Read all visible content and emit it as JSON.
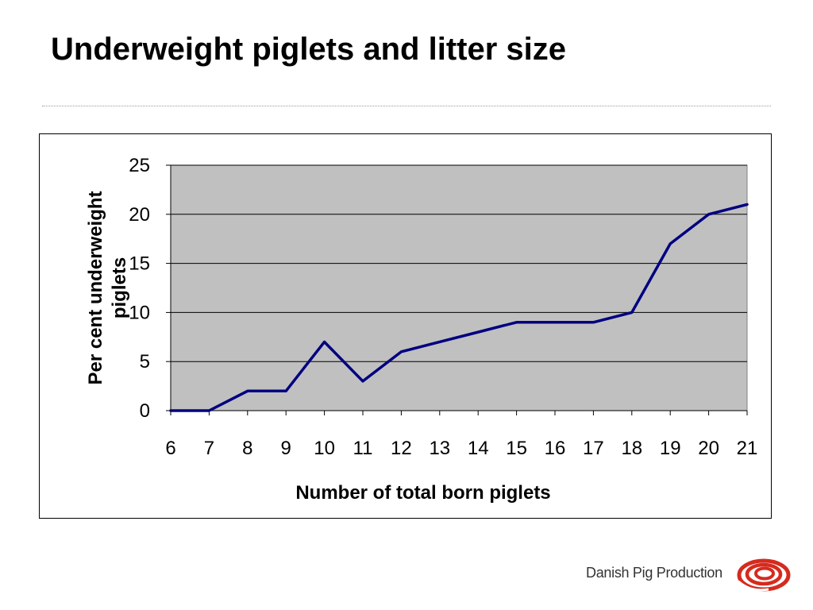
{
  "slide": {
    "title": "Underweight piglets and litter size"
  },
  "branding": {
    "logo_text": "Danish Pig Production",
    "logo_color": "#d52b1e",
    "logo_icon": "concentric-swirl-icon"
  },
  "chart_data": {
    "type": "line",
    "title": "",
    "xlabel": "Number of total born piglets",
    "ylabel": "Per cent underweight piglets",
    "x": [
      6,
      7,
      8,
      9,
      10,
      11,
      12,
      13,
      14,
      15,
      16,
      17,
      18,
      19,
      20,
      21
    ],
    "series": [
      {
        "values": [
          0,
          0,
          2,
          2,
          7,
          3,
          6,
          7,
          8,
          9,
          9,
          9,
          10,
          17,
          20,
          21
        ],
        "color": "#000080"
      }
    ],
    "ylim": [
      0,
      25
    ],
    "yticks": [
      0,
      5,
      10,
      15,
      20,
      25
    ],
    "xlim": [
      6,
      21
    ],
    "grid": "horizontal",
    "plot_background": "#c0c0c0",
    "legend": "none"
  }
}
